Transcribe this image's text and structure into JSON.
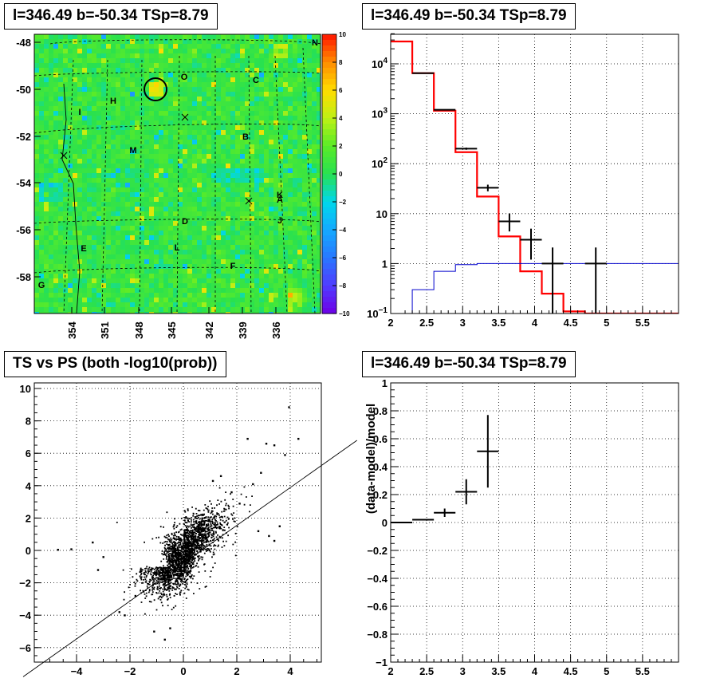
{
  "chart_data": [
    {
      "type": "heatmap",
      "title": "l=346.49 b=-50.34 TSp=8.79",
      "x_ticks": [
        "354",
        "351",
        "348",
        "345",
        "342",
        "339",
        "336"
      ],
      "y_ticks": [
        "-48",
        "-50",
        "-52",
        "-54",
        "-56",
        "-58"
      ],
      "colorbar_ticks": [
        "10",
        "8",
        "6",
        "4",
        "2",
        "0",
        "-2",
        "-4",
        "-6",
        "-8",
        "-10"
      ],
      "colorbar_range": [
        -10,
        10
      ],
      "region_labels": [
        "N",
        "O",
        "C",
        "H",
        "I",
        "B",
        "M",
        "K",
        "A",
        "D",
        "J",
        "E",
        "L",
        "F",
        "G"
      ],
      "colors": {
        "background_field": "#33e033"
      }
    },
    {
      "type": "line",
      "title": "l=346.49 b=-50.34 TSp=8.79",
      "y_scale": "log",
      "xlim": [
        2,
        6
      ],
      "ylim": [
        0.1,
        50000
      ],
      "x_ticks": [
        "2",
        "2.5",
        "3",
        "3.5",
        "4",
        "4.5",
        "5",
        "5.5"
      ],
      "y_ticks": [
        "10^-1",
        "1",
        "10",
        "10^2",
        "10^3",
        "10^4"
      ],
      "data_points": [
        {
          "x": 2.45,
          "y": 6500,
          "xerr": 0.15,
          "yerr_lo": 0,
          "yerr_hi": 0
        },
        {
          "x": 2.75,
          "y": 1200,
          "xerr": 0.15,
          "yerr_lo": 0,
          "yerr_hi": 0
        },
        {
          "x": 3.05,
          "y": 200,
          "xerr": 0.15,
          "yerr_lo": 10,
          "yerr_hi": 10
        },
        {
          "x": 3.35,
          "y": 33,
          "xerr": 0.15,
          "yerr_lo": 5,
          "yerr_hi": 5
        },
        {
          "x": 3.65,
          "y": 7,
          "xerr": 0.15,
          "yerr_lo": 2.6,
          "yerr_hi": 3.1
        },
        {
          "x": 3.95,
          "y": 3,
          "xerr": 0.15,
          "yerr_lo": 1.8,
          "yerr_hi": 2
        },
        {
          "x": 4.25,
          "y": 1,
          "xerr": 0.15,
          "yerr_lo": 0.9,
          "yerr_hi": 1.1
        },
        {
          "x": 4.85,
          "y": 1,
          "xerr": 0.15,
          "yerr_lo": 0.9,
          "yerr_hi": 1.1
        }
      ],
      "series": [
        {
          "role": "total-model",
          "color": "#ff0000",
          "edges": [
            2.0,
            2.3,
            2.6,
            2.9,
            3.2,
            3.5,
            3.8,
            4.1,
            4.4,
            4.7,
            5.0,
            6.0
          ],
          "values": [
            28000,
            6500,
            1150,
            170,
            22,
            3.5,
            0.7,
            0.25,
            0.11,
            0.1,
            0.1
          ]
        },
        {
          "role": "component",
          "color": "#0000cc",
          "edges": [
            2.0,
            2.3,
            2.6,
            2.9,
            3.2,
            3.5,
            3.8,
            4.1,
            4.4,
            4.7,
            5.0,
            6.0
          ],
          "values": [
            0.1,
            0.3,
            0.7,
            0.95,
            1.0,
            1.0,
            1.0,
            1.0,
            1.0,
            1.0,
            1.0
          ]
        }
      ],
      "grid": true
    },
    {
      "type": "scatter",
      "title": "TS vs PS (both -log10(prob))",
      "xlim": [
        -5.5,
        5.1
      ],
      "ylim": [
        -6.8,
        10.2
      ],
      "x_ticks": [
        "−4",
        "−2",
        "0",
        "2",
        "4"
      ],
      "y_ticks": [
        "−6",
        "−4",
        "−2",
        "0",
        "2",
        "4",
        "6",
        "8",
        "10"
      ],
      "line": {
        "x1": -6,
        "y1": -7.8,
        "x2": 6.5,
        "y2": 6.8
      },
      "outliers": [
        [
          3.95,
          8.85
        ],
        [
          4.3,
          6.9
        ],
        [
          3.4,
          6.5
        ],
        [
          3.1,
          6.6
        ],
        [
          2.4,
          6.9
        ],
        [
          3.8,
          5.9
        ],
        [
          1.4,
          4.6
        ],
        [
          1.1,
          4.3
        ],
        [
          2.6,
          4.1
        ],
        [
          2.9,
          4.8
        ],
        [
          -4.7,
          0.05
        ],
        [
          -4.2,
          0.08
        ],
        [
          -3.4,
          0.5
        ],
        [
          -3.2,
          -1.2
        ],
        [
          -2.4,
          -3.8
        ],
        [
          -1.1,
          -5.0
        ],
        [
          -0.7,
          -5.5
        ],
        [
          -2.2,
          -4.0
        ],
        [
          -0.5,
          -4.8
        ],
        [
          -1.8,
          -2.8
        ],
        [
          2.8,
          1.2
        ],
        [
          3.2,
          0.9
        ],
        [
          3.6,
          1.5
        ],
        [
          2.1,
          2.9
        ],
        [
          1.8,
          3.6
        ],
        [
          -3.0,
          -0.4
        ],
        [
          3.4,
          0.6
        ]
      ],
      "grid": true
    },
    {
      "type": "scatter",
      "title": "l=346.49 b=-50.34 TSp=8.79",
      "ylabel": "(data-model)/model",
      "xlim": [
        2,
        6
      ],
      "ylim": [
        -1,
        1
      ],
      "x_ticks": [
        "2",
        "2.5",
        "3",
        "3.5",
        "4",
        "4.5",
        "5",
        "5.5"
      ],
      "y_ticks": [
        "−1",
        "−0.8",
        "−0.6",
        "−0.4",
        "−0.2",
        "0",
        "0.2",
        "0.4",
        "0.6",
        "0.8",
        "1"
      ],
      "data_points": [
        {
          "x": 2.15,
          "y": 0.0,
          "xerr": 0.15,
          "yerr": 0.005
        },
        {
          "x": 2.45,
          "y": 0.02,
          "xerr": 0.15,
          "yerr": 0.01
        },
        {
          "x": 2.75,
          "y": 0.07,
          "xerr": 0.15,
          "yerr": 0.03
        },
        {
          "x": 3.05,
          "y": 0.22,
          "xerr": 0.15,
          "yerr": 0.09
        },
        {
          "x": 3.35,
          "y": 0.51,
          "xerr": 0.15,
          "yerr": 0.26
        }
      ],
      "grid": true
    }
  ]
}
